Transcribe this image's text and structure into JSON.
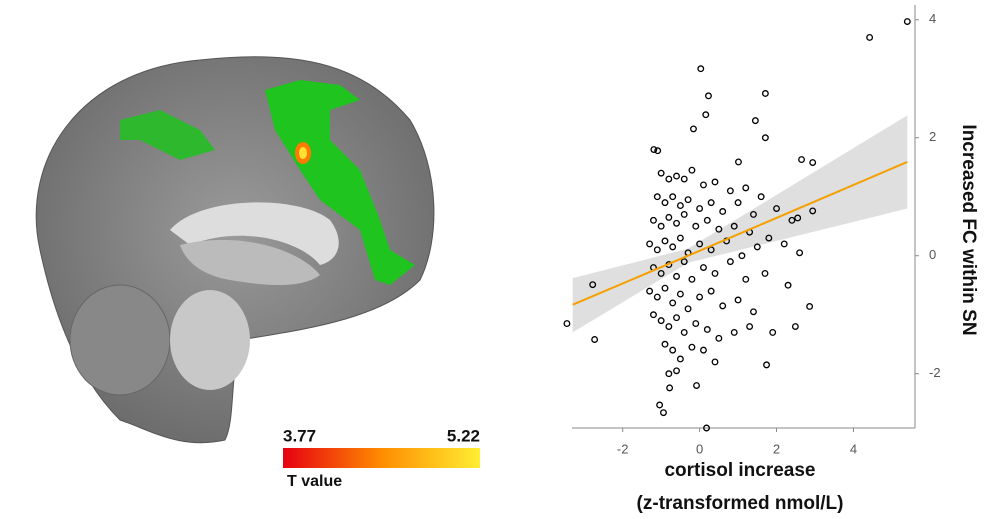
{
  "chart_data": [
    {
      "type": "colorbar",
      "label": "T value",
      "ticks": [
        3.77,
        5.22
      ],
      "colors": [
        "#e60012",
        "#ff8c00",
        "#ffee33"
      ]
    },
    {
      "type": "scatter",
      "xlabel": [
        "cortisol increase",
        "(z-transformed nmol/L)"
      ],
      "ylabel": "Increased FC within SN",
      "xlim": [
        -3.5,
        5.6
      ],
      "ylim": [
        -2.92,
        4.25
      ],
      "xticks": [
        -2,
        0,
        2,
        4
      ],
      "yticks": [
        -2,
        0,
        2,
        4
      ],
      "point_color": "#000000",
      "x": [
        5.4,
        4.42,
        0.03,
        0.23,
        1.71,
        0.16,
        1.45,
        -0.16,
        1.71,
        -1.19,
        -1.09,
        2.65,
        2.94,
        1.01,
        -3.45,
        -2.78,
        -2.73,
        0.18,
        -1.04,
        -0.94,
        -0.78,
        -0.08,
        2.49,
        1.74,
        2.86,
        2.55,
        2.94,
        -1.0,
        -0.8,
        -0.6,
        -0.4,
        -0.2,
        0.1,
        0.4,
        0.8,
        1.2,
        1.6,
        -1.1,
        -0.9,
        -0.7,
        -0.5,
        -0.3,
        0,
        0.3,
        0.6,
        1.0,
        1.4,
        2.0,
        2.4,
        -1.2,
        -1.0,
        -0.8,
        -0.6,
        -0.4,
        -0.1,
        0.2,
        0.5,
        0.9,
        1.3,
        1.8,
        2.2,
        -1.3,
        -1.1,
        -0.9,
        -0.7,
        -0.5,
        -0.3,
        0,
        0.3,
        0.7,
        1.1,
        1.5,
        2.6,
        -1.2,
        -1.0,
        -0.8,
        -0.6,
        -0.4,
        -0.2,
        0.1,
        0.4,
        0.8,
        1.2,
        1.7,
        2.3,
        -1.3,
        -1.1,
        -0.9,
        -0.7,
        -0.5,
        -0.3,
        0,
        0.3,
        0.6,
        1.0,
        1.4,
        -1.2,
        -1.0,
        -0.8,
        -0.6,
        -0.4,
        -0.1,
        0.2,
        0.5,
        0.9,
        1.3,
        1.9,
        -0.9,
        -0.7,
        -0.5,
        -0.2,
        0.1,
        0.4,
        -0.6,
        -0.8
      ],
      "values": [
        3.97,
        3.7,
        3.17,
        2.71,
        2.75,
        2.39,
        2.29,
        2.15,
        2.0,
        1.8,
        1.78,
        1.63,
        1.58,
        1.59,
        -1.15,
        -0.49,
        -1.42,
        -2.92,
        -2.53,
        -2.66,
        -2.24,
        -2.2,
        -1.2,
        -1.85,
        -0.86,
        0.64,
        0.76,
        1.4,
        1.3,
        1.35,
        1.3,
        1.45,
        1.2,
        1.25,
        1.1,
        1.15,
        1.0,
        1.0,
        0.9,
        1.0,
        0.85,
        0.95,
        0.8,
        0.9,
        0.75,
        0.9,
        0.7,
        0.8,
        0.6,
        0.6,
        0.5,
        0.65,
        0.55,
        0.7,
        0.5,
        0.6,
        0.45,
        0.5,
        0.4,
        0.3,
        0.2,
        0.2,
        0.1,
        0.25,
        0.15,
        0.3,
        0.05,
        0.2,
        0.1,
        0.25,
        0.0,
        0.15,
        0.05,
        -0.2,
        -0.3,
        -0.15,
        -0.35,
        -0.1,
        -0.4,
        -0.2,
        -0.3,
        -0.1,
        -0.4,
        -0.3,
        -0.5,
        -0.6,
        -0.7,
        -0.55,
        -0.8,
        -0.65,
        -0.9,
        -0.7,
        -0.6,
        -0.85,
        -0.75,
        -0.95,
        -1.0,
        -1.1,
        -1.2,
        -1.05,
        -1.3,
        -1.15,
        -1.25,
        -1.4,
        -1.3,
        -1.2,
        -1.3,
        -1.5,
        -1.6,
        -1.75,
        -1.55,
        -1.6,
        -1.8,
        -1.95,
        -2.0
      ],
      "fit": {
        "color": "#f5a000",
        "band_color": "#d9d9d9",
        "x": [
          -3.3,
          -0.3,
          5.4
        ],
        "values": [
          -0.83,
          0.0,
          1.59
        ],
        "lower": [
          -1.3,
          -0.12,
          0.8
        ],
        "upper": [
          -0.38,
          0.12,
          2.38
        ]
      }
    }
  ]
}
